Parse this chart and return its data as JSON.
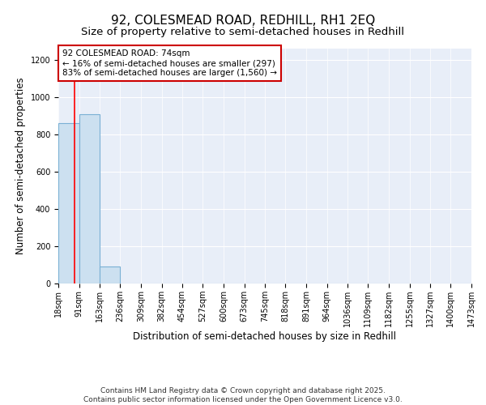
{
  "title": "92, COLESMEAD ROAD, REDHILL, RH1 2EQ",
  "subtitle": "Size of property relative to semi-detached houses in Redhill",
  "xlabel": "Distribution of semi-detached houses by size in Redhill",
  "ylabel": "Number of semi-detached properties",
  "bar_edges": [
    18,
    91,
    163,
    236,
    309,
    382,
    454,
    527,
    600,
    673,
    745,
    818,
    891,
    964,
    1036,
    1109,
    1182,
    1255,
    1327,
    1400,
    1473
  ],
  "bar_heights": [
    860,
    910,
    90,
    0,
    0,
    0,
    0,
    0,
    0,
    0,
    0,
    0,
    0,
    0,
    0,
    0,
    0,
    0,
    0,
    0
  ],
  "bar_color": "#cce0f0",
  "bar_edge_color": "#7ab0d4",
  "red_line_x": 74,
  "annotation_line1": "92 COLESMEAD ROAD: 74sqm",
  "annotation_line2": "← 16% of semi-detached houses are smaller (297)",
  "annotation_line3": "83% of semi-detached houses are larger (1,560) →",
  "annotation_box_color": "#ffffff",
  "annotation_box_edge": "#cc0000",
  "ylim": [
    0,
    1260
  ],
  "yticks": [
    0,
    200,
    400,
    600,
    800,
    1000,
    1200
  ],
  "bg_color": "#e8eef8",
  "footer_line1": "Contains HM Land Registry data © Crown copyright and database right 2025.",
  "footer_line2": "Contains public sector information licensed under the Open Government Licence v3.0.",
  "title_fontsize": 11,
  "subtitle_fontsize": 9.5,
  "axis_label_fontsize": 8.5,
  "tick_fontsize": 7,
  "annotation_fontsize": 7.5,
  "footer_fontsize": 6.5
}
